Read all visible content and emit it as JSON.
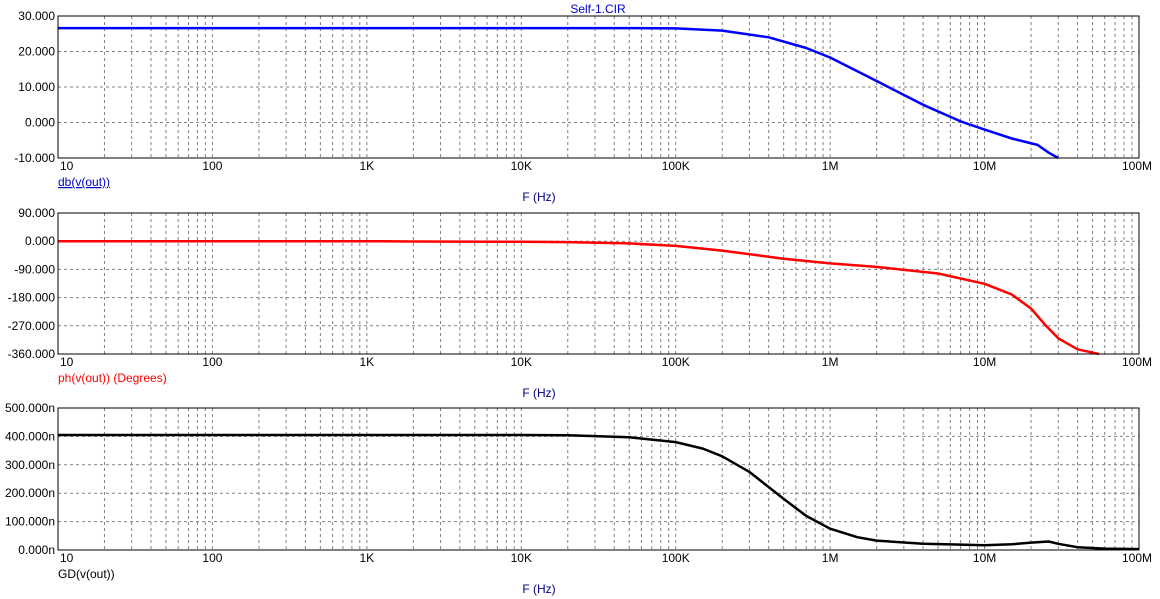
{
  "window_title": "Self-1.CIR",
  "chart_data": [
    {
      "type": "line",
      "title": "Self-1.CIR",
      "xlabel": "F (Hz)",
      "ylabel": "db(v(out))",
      "xscale": "log",
      "xlim": [
        10,
        100000000
      ],
      "ylim": [
        -10,
        30
      ],
      "x_tick_labels": [
        "10",
        "100",
        "1K",
        "10K",
        "100K",
        "1M",
        "10M",
        "100M"
      ],
      "y_tick_labels": [
        "30.000",
        "20.000",
        "10.000",
        "0.000",
        "-10.000"
      ],
      "grid": true,
      "series": [
        {
          "color": "#0000ff",
          "x": [
            10,
            100,
            1000,
            10000,
            50000,
            100000,
            200000,
            400000,
            700000,
            1000000,
            2000000,
            4000000,
            7000000,
            10000000,
            15000000,
            22000000,
            26000000,
            30000000
          ],
          "y": [
            26.6,
            26.6,
            26.6,
            26.6,
            26.6,
            26.5,
            25.9,
            24,
            21,
            18.3,
            11.7,
            5,
            0.3,
            -2,
            -4.5,
            -6.3,
            -8.5,
            -10
          ]
        }
      ]
    },
    {
      "type": "line",
      "xlabel": "F (Hz)",
      "ylabel": "ph(v(out)) (Degrees)",
      "xscale": "log",
      "xlim": [
        10,
        100000000
      ],
      "ylim": [
        -360,
        90
      ],
      "x_tick_labels": [
        "10",
        "100",
        "1K",
        "10K",
        "100K",
        "1M",
        "10M",
        "100M"
      ],
      "y_tick_labels": [
        "90.000",
        "0.000",
        "-90.000",
        "-180.000",
        "-270.000",
        "-360.000"
      ],
      "grid": true,
      "series": [
        {
          "color": "#ff0000",
          "x": [
            10,
            100,
            1000,
            2000,
            10000,
            20000,
            50000,
            100000,
            200000,
            500000,
            1000000,
            2000000,
            5000000,
            10000000,
            15000000,
            20000000,
            25000000,
            30000000,
            40000000,
            55000000
          ],
          "y": [
            0,
            0,
            0,
            -1,
            -2,
            -3,
            -7,
            -15,
            -30,
            -56,
            -71,
            -82,
            -103,
            -136,
            -170,
            -215,
            -270,
            -310,
            -345,
            -360
          ]
        }
      ]
    },
    {
      "type": "line",
      "xlabel": "F (Hz)",
      "ylabel": "GD(v(out))",
      "xscale": "log",
      "xlim": [
        10,
        100000000
      ],
      "ylim": [
        0,
        500
      ],
      "y_unit": "n",
      "x_tick_labels": [
        "10",
        "100",
        "1K",
        "10K",
        "100K",
        "1M",
        "10M",
        "100M"
      ],
      "y_tick_labels": [
        "500.000n",
        "400.000n",
        "300.000n",
        "200.000n",
        "100.000n",
        "0.000n"
      ],
      "grid": true,
      "series": [
        {
          "color": "#000000",
          "x": [
            10,
            100,
            1000,
            10000,
            20000,
            50000,
            100000,
            150000,
            200000,
            300000,
            500000,
            700000,
            1000000,
            1500000,
            2000000,
            4000000,
            7000000,
            10000000,
            15000000,
            20000000,
            26000000,
            30000000,
            40000000,
            60000000,
            100000000
          ],
          "y": [
            405,
            405,
            405,
            405,
            404,
            397,
            380,
            357,
            330,
            275,
            180,
            120,
            75,
            45,
            33,
            22,
            19,
            17,
            20,
            26,
            30,
            22,
            10,
            5,
            3
          ]
        }
      ]
    }
  ]
}
